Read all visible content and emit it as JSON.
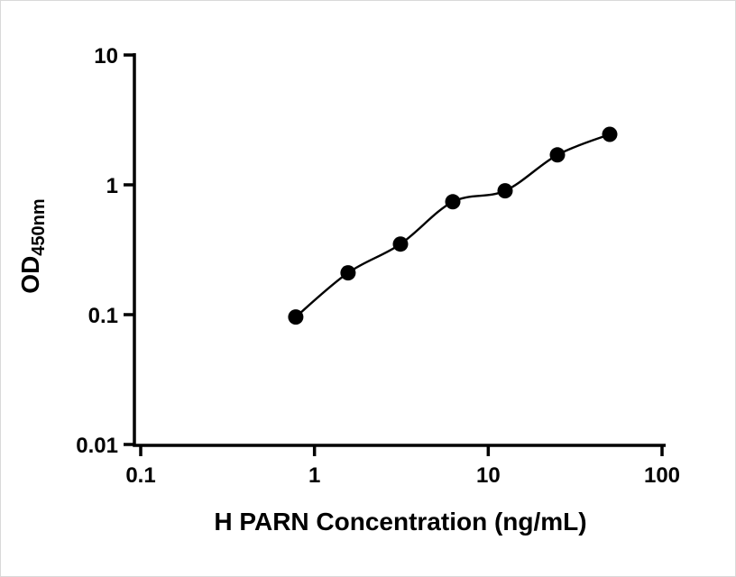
{
  "figure": {
    "background": "#ffffff"
  },
  "chart_data": {
    "type": "scatter",
    "title": "",
    "xlabel": "H PARN Concentration (ng/mL)",
    "ylabel": "OD450nm",
    "ylabel_base": "OD",
    "ylabel_sub": "450nm",
    "xscale": "log",
    "yscale": "log",
    "xlim": [
      0.1,
      100
    ],
    "ylim": [
      0.01,
      10
    ],
    "x_ticks": [
      "0.1",
      "1",
      "10",
      "100"
    ],
    "y_ticks": [
      "10",
      "1",
      "0.1",
      "0.01"
    ],
    "grid": false,
    "legend": false,
    "curve_through_points": true,
    "marker_color": "#000000",
    "line_color": "#000000",
    "axis_color": "#000000",
    "points": [
      {
        "x": 0.78,
        "y": 0.096
      },
      {
        "x": 1.56,
        "y": 0.21
      },
      {
        "x": 3.125,
        "y": 0.35
      },
      {
        "x": 6.25,
        "y": 0.74
      },
      {
        "x": 12.5,
        "y": 0.9
      },
      {
        "x": 25,
        "y": 1.7
      },
      {
        "x": 50,
        "y": 2.45
      }
    ]
  }
}
